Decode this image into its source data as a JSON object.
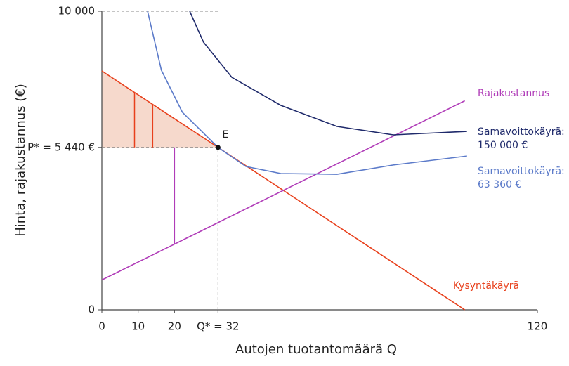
{
  "chart_data": {
    "type": "line",
    "x_label": "Autojen tuotantomäärä Q",
    "y_label": "Hinta, rajakustannus (€)",
    "xlim": [
      0,
      120
    ],
    "ylim": [
      0,
      10000
    ],
    "xticks": [
      0,
      10,
      20,
      {
        "value": 32,
        "label": "Q* = 32"
      },
      120
    ],
    "yticks": [
      0,
      {
        "value": 5440,
        "label": "P* = 5 440 €"
      },
      {
        "value": 10000,
        "label": "10 000"
      }
    ],
    "series": [
      {
        "name": "Kysyntäkäyrä",
        "color": "#e8401c",
        "x": [
          0,
          100
        ],
        "values": [
          8000,
          0
        ]
      },
      {
        "name": "Rajakustannus",
        "color": "#b03cb8",
        "x": [
          0,
          100
        ],
        "values": [
          1000,
          7000
        ]
      },
      {
        "name": "Samavoittokäyrä: 150 000 €",
        "label_lines": [
          "Samavoittokäyrä:",
          "150 000 €"
        ],
        "color": "#1f2a6b",
        "x": [
          24.2,
          28,
          35.8,
          49.3,
          64.8,
          80.3,
          100.6
        ],
        "values": [
          10000,
          8965,
          7788,
          6847,
          6141,
          5859,
          5976
        ]
      },
      {
        "name": "Samavoittokäyrä: 63 360 €",
        "label_lines": [
          "Samavoittokäyrä:",
          "63 360 €"
        ],
        "color": "#5b7ac9",
        "x": [
          12.6,
          16.4,
          22.2,
          32,
          39.7,
          49.3,
          64.8,
          80.3,
          100.6
        ],
        "values": [
          10000,
          8024,
          6612,
          5440,
          4800,
          4565,
          4540,
          4850,
          5150
        ]
      }
    ],
    "segments": [
      {
        "x": 9,
        "values": [
          5440,
          7280
        ],
        "color": "#e8401c"
      },
      {
        "x": 14,
        "values": [
          5440,
          6880
        ],
        "color": "#e8401c"
      },
      {
        "x": 20,
        "values": [
          2200,
          5440
        ],
        "color": "#b03cb8"
      }
    ],
    "point": {
      "x": 32,
      "y": 5440,
      "label": "E"
    }
  }
}
